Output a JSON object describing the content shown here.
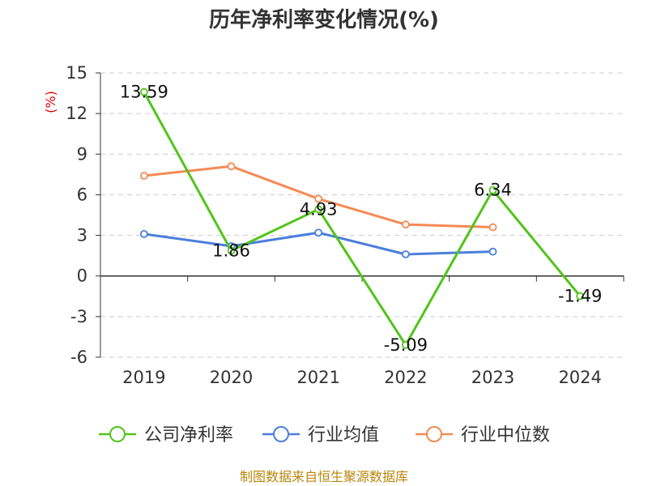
{
  "chart_data": {
    "type": "line",
    "title": "历年净利率变化情况(%)",
    "ylabel": "(%)",
    "categories": [
      "2019",
      "2020",
      "2021",
      "2022",
      "2023",
      "2024"
    ],
    "ylim": [
      -6,
      15
    ],
    "yticks": [
      15,
      12,
      9,
      6,
      3,
      0,
      -3,
      -6
    ],
    "grid": true,
    "legend_position": "bottom",
    "series": [
      {
        "name": "公司净利率",
        "color": "#52c41a",
        "values": [
          13.59,
          1.86,
          4.93,
          -5.09,
          6.34,
          -1.49
        ],
        "labels": [
          "13.59",
          "1.86",
          "4.93",
          "-5.09",
          "6.34",
          "-1.49"
        ]
      },
      {
        "name": "行业均值",
        "color": "#4a7fdc",
        "values": [
          3.1,
          2.2,
          3.2,
          1.6,
          1.8,
          null
        ]
      },
      {
        "name": "行业中位数",
        "color": "#f58a55",
        "values": [
          7.4,
          8.1,
          5.7,
          3.8,
          3.6,
          null
        ]
      }
    ]
  },
  "source": "制图数据来自恒生聚源数据库"
}
